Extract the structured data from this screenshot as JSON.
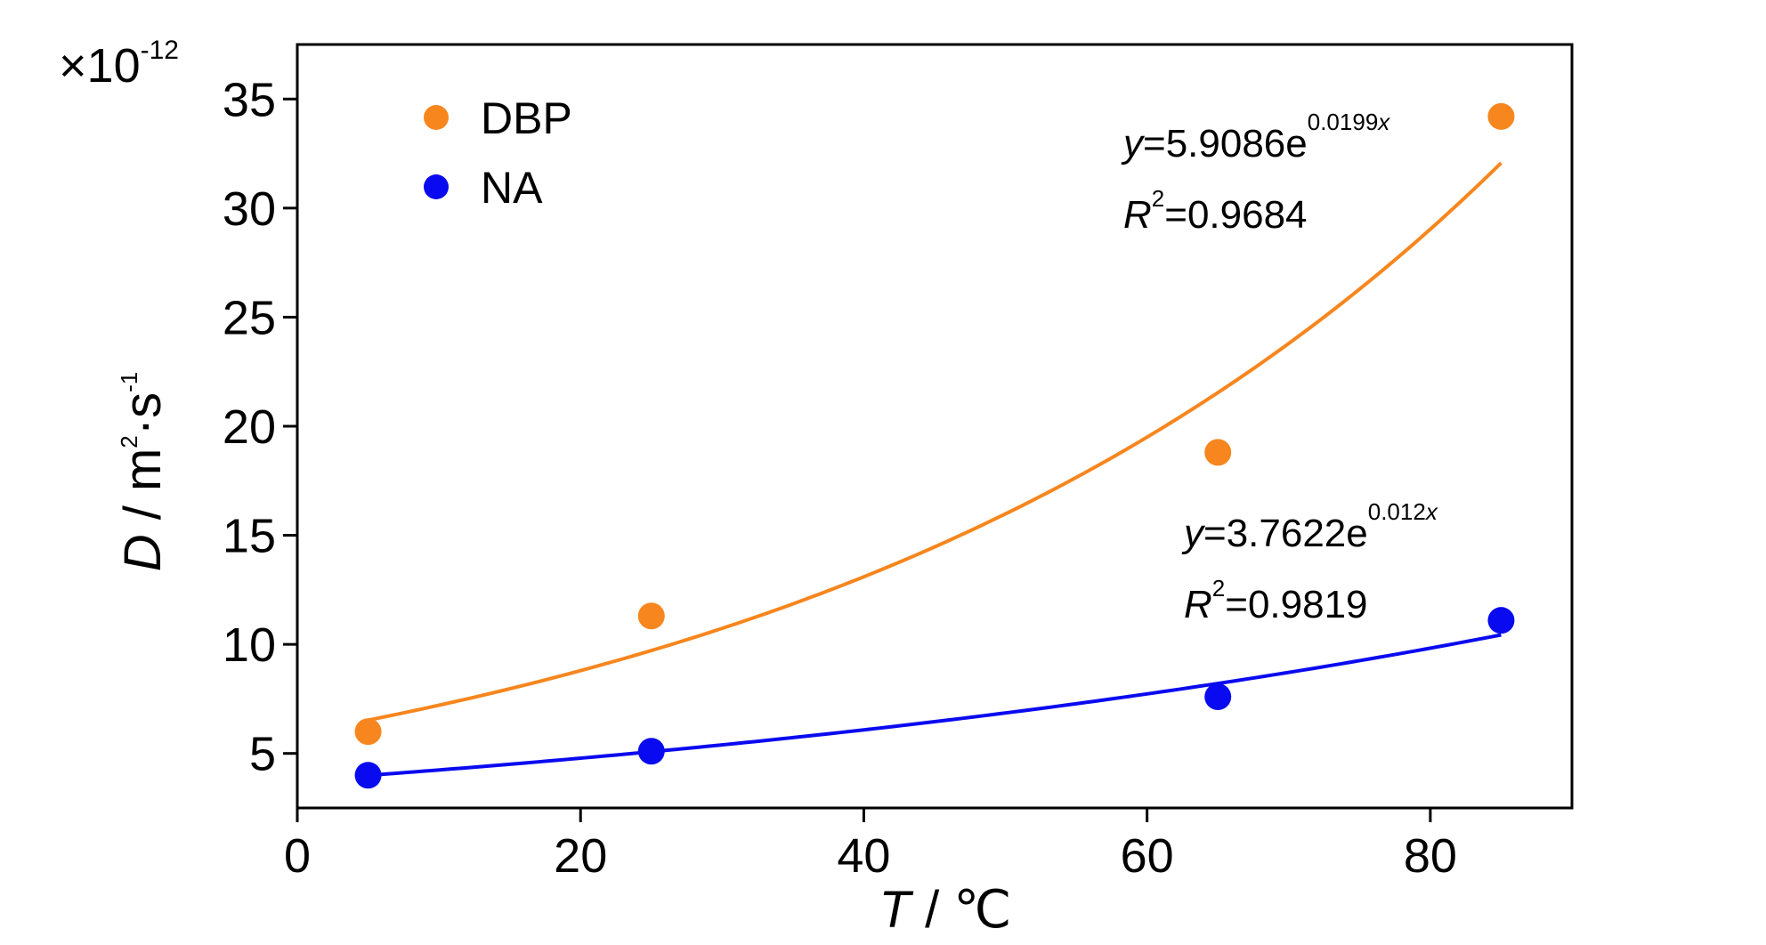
{
  "chart_data": {
    "type": "scatter",
    "xlabel_var": "T",
    "xlabel_unit": " / ℃",
    "ylabel_var": "D",
    "ylabel_unit_base": " / m",
    "ylabel_unit_sup1": "2",
    "ylabel_unit_mid": "·s",
    "ylabel_unit_sup2": "-1",
    "y_scale_prefix": "×10",
    "y_scale_exponent": "-12",
    "xlim": [
      0,
      90
    ],
    "ylim": [
      2.5,
      37.5
    ],
    "xticks": [
      0,
      20,
      40,
      60,
      80
    ],
    "yticks": [
      5,
      10,
      15,
      20,
      25,
      30,
      35
    ],
    "legend_position": "top-left",
    "series": [
      {
        "name": "DBP",
        "color": "#F7861E",
        "x": [
          5,
          25,
          65,
          85
        ],
        "y": [
          6.0,
          11.3,
          18.8,
          34.2
        ],
        "fit": {
          "type": "exponential",
          "a": 5.9086,
          "b": 0.0199
        },
        "equation": {
          "y_var": "y",
          "eq_prefix": "=5.9086e",
          "exponent": "0.0199",
          "exponent_var": "x",
          "r_var": "R",
          "r_sup": "2",
          "r_value": "=0.9684"
        }
      },
      {
        "name": "NA",
        "color": "#0A0AF0",
        "x": [
          5,
          25,
          65,
          85
        ],
        "y": [
          4.0,
          5.1,
          7.6,
          11.1
        ],
        "fit": {
          "type": "exponential",
          "a": 3.7622,
          "b": 0.012
        },
        "equation": {
          "y_var": "y",
          "eq_prefix": "=3.7622e",
          "exponent": "0.012",
          "exponent_var": "x",
          "r_var": "R",
          "r_sup": "2",
          "r_value": "=0.9819"
        }
      }
    ]
  }
}
